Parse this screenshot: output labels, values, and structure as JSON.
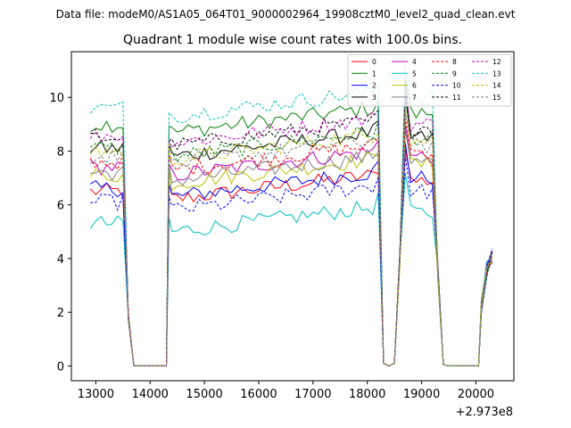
{
  "suptitle": "Data file: modeM0/AS1A05_064T01_9000002964_19908cztM0_level2_quad_clean.evt",
  "chart_data": {
    "type": "line",
    "title": "Quadrant 1 module wise count rates with 100.0s bins.",
    "xlabel": "",
    "ylabel": "",
    "x_offset_label": "+2.973e8",
    "xlim": [
      12550,
      20700
    ],
    "ylim": [
      -0.55,
      11.7
    ],
    "x_ticks": [
      13000,
      14000,
      15000,
      16000,
      17000,
      18000,
      19000,
      20000
    ],
    "y_ticks": [
      0,
      2,
      4,
      6,
      8,
      10
    ],
    "legend_position": "upper-right",
    "segments": [
      {
        "x_start": 12900,
        "x_end": 13550,
        "step": 100,
        "bounds": [
          [
            12900,
            13550
          ]
        ]
      },
      {
        "x_start": 13600,
        "x_end": 14400,
        "note": "SAA gap"
      },
      {
        "x_start": 14340,
        "x_end": 18150,
        "step": 100
      },
      {
        "x_start": 18300,
        "x_end": 18600,
        "note": "dip"
      },
      {
        "x_start": 18640,
        "x_end": 19300,
        "step": 100
      },
      {
        "x_start": 19500,
        "x_end": 20100,
        "note": "SAA gap"
      },
      {
        "x_start": 20150,
        "x_end": 20300,
        "step": 100
      }
    ],
    "series": [
      {
        "name": "0",
        "color": "#ff0000",
        "dash": false,
        "base": 6.5
      },
      {
        "name": "1",
        "color": "#008000",
        "dash": false,
        "base": 9.0
      },
      {
        "name": "2",
        "color": "#0000ff",
        "dash": false,
        "base": 6.6
      },
      {
        "name": "3",
        "color": "#000000",
        "dash": false,
        "base": 8.1
      },
      {
        "name": "4",
        "color": "#bf00bf",
        "dash": false,
        "base": 7.4
      },
      {
        "name": "5",
        "color": "#00bfbf",
        "dash": false,
        "base": 5.3
      },
      {
        "name": "6",
        "color": "#bfbf00",
        "dash": false,
        "base": 7.1
      },
      {
        "name": "7",
        "color": "#808080",
        "dash": false,
        "base": 7.2
      },
      {
        "name": "8",
        "color": "#ff0000",
        "dash": true,
        "base": 7.6
      },
      {
        "name": "9",
        "color": "#008000",
        "dash": true,
        "base": 8.1
      },
      {
        "name": "10",
        "color": "#0000ff",
        "dash": true,
        "base": 6.1
      },
      {
        "name": "11",
        "color": "#000000",
        "dash": true,
        "base": 8.5
      },
      {
        "name": "12",
        "color": "#bf00bf",
        "dash": true,
        "base": 8.6
      },
      {
        "name": "13",
        "color": "#00bfbf",
        "dash": true,
        "base": 9.6
      },
      {
        "name": "14",
        "color": "#bfbf00",
        "dash": true,
        "base": 8.0
      },
      {
        "name": "15",
        "color": "#808080",
        "dash": true,
        "base": 7.8
      }
    ]
  }
}
